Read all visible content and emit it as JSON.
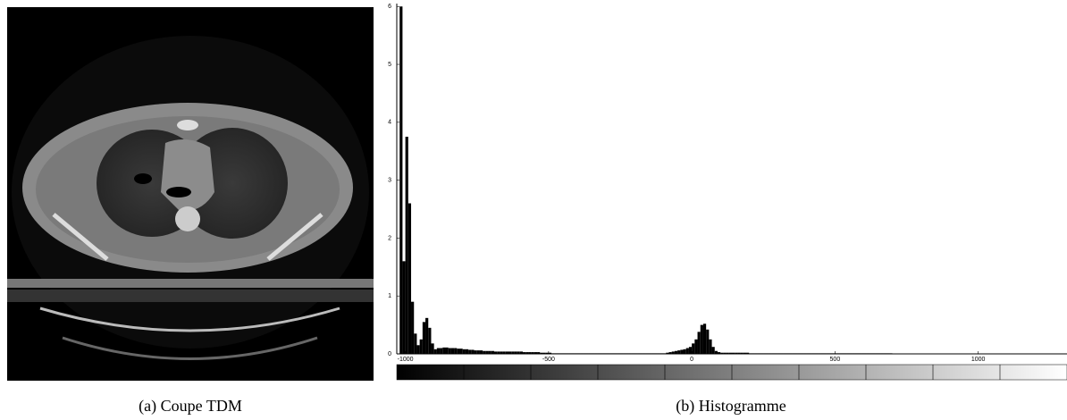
{
  "chart_data": {
    "type": "histogram",
    "bins": [
      -1020,
      -1010,
      -1000,
      -990,
      -980,
      -970,
      -960,
      -950,
      -940,
      -930,
      -920,
      -910,
      -900,
      -890,
      -880,
      -870,
      -860,
      -850,
      -840,
      -830,
      -820,
      -810,
      -800,
      -790,
      -780,
      -770,
      -760,
      -750,
      -740,
      -730,
      -720,
      -710,
      -700,
      -690,
      -680,
      -670,
      -660,
      -650,
      -640,
      -630,
      -620,
      -610,
      -600,
      -590,
      -580,
      -570,
      -560,
      -550,
      -540,
      -530,
      -520,
      -510,
      -500,
      -490,
      -480,
      -470,
      -460,
      -450,
      -440,
      -430,
      -420,
      -410,
      -400,
      -390,
      -380,
      -370,
      -360,
      -350,
      -340,
      -330,
      -320,
      -310,
      -300,
      -290,
      -280,
      -270,
      -260,
      -250,
      -240,
      -230,
      -220,
      -210,
      -200,
      -190,
      -180,
      -170,
      -160,
      -150,
      -140,
      -130,
      -120,
      -110,
      -100,
      -90,
      -80,
      -70,
      -60,
      -50,
      -40,
      -30,
      -20,
      -10,
      0,
      10,
      20,
      30,
      40,
      50,
      60,
      70,
      80,
      90,
      100,
      110,
      120,
      130,
      140,
      150,
      160,
      170,
      180,
      190,
      200,
      210,
      220,
      230,
      240,
      250,
      260,
      270,
      280,
      290,
      300,
      310,
      320,
      330,
      340,
      350,
      360,
      370,
      380,
      390,
      400,
      410,
      420,
      430,
      440,
      450,
      460,
      470,
      480,
      490,
      500,
      510,
      520,
      530,
      540,
      550,
      560,
      570,
      580,
      590,
      600,
      610,
      620,
      630,
      640,
      650,
      660,
      670,
      680,
      690,
      700,
      710,
      720,
      730,
      740,
      750,
      760,
      770,
      780,
      790,
      800,
      810,
      820,
      830,
      840,
      850,
      860,
      870,
      880,
      890,
      900,
      910,
      920,
      930,
      940,
      950,
      960,
      970,
      980,
      990,
      1000,
      1010,
      1020,
      1030,
      1040,
      1050,
      1060,
      1070,
      1080,
      1090,
      1100,
      1110,
      1120,
      1130,
      1140,
      1150,
      1160,
      1170,
      1180,
      1190,
      1200,
      1210,
      1220,
      1230,
      1240,
      1250,
      1260,
      1270,
      1280,
      1290,
      1300
    ],
    "values": [
      6.0,
      1.6,
      3.75,
      2.6,
      0.9,
      0.35,
      0.15,
      0.25,
      0.55,
      0.62,
      0.45,
      0.18,
      0.08,
      0.1,
      0.1,
      0.11,
      0.11,
      0.1,
      0.1,
      0.1,
      0.09,
      0.09,
      0.08,
      0.08,
      0.07,
      0.07,
      0.06,
      0.06,
      0.06,
      0.05,
      0.05,
      0.05,
      0.05,
      0.04,
      0.04,
      0.04,
      0.04,
      0.04,
      0.04,
      0.04,
      0.04,
      0.04,
      0.04,
      0.03,
      0.03,
      0.03,
      0.03,
      0.03,
      0.03,
      0.02,
      0.02,
      0.02,
      0.02,
      0.01,
      0.01,
      0.01,
      0.01,
      0.01,
      0.01,
      0.01,
      0.01,
      0.01,
      0.01,
      0.01,
      0.01,
      0.01,
      0.01,
      0.01,
      0.01,
      0.01,
      0.01,
      0.01,
      0.01,
      0.01,
      0.01,
      0.01,
      0.01,
      0.01,
      0.01,
      0.01,
      0.01,
      0.01,
      0.01,
      0.01,
      0.01,
      0.01,
      0.01,
      0.01,
      0.01,
      0.01,
      0.01,
      0.01,
      0.01,
      0.02,
      0.03,
      0.04,
      0.05,
      0.06,
      0.07,
      0.08,
      0.1,
      0.12,
      0.18,
      0.25,
      0.38,
      0.5,
      0.52,
      0.42,
      0.25,
      0.12,
      0.05,
      0.03,
      0.02,
      0.02,
      0.02,
      0.02,
      0.02,
      0.02,
      0.02,
      0.02,
      0.02,
      0.02,
      0.01,
      0.01,
      0.01,
      0.01,
      0.01,
      0.01,
      0.01,
      0.01,
      0.01,
      0.01,
      0.01,
      0.01,
      0.01,
      0.01,
      0.01,
      0.01,
      0.01,
      0.01,
      0.01,
      0.01,
      0.01,
      0.01,
      0.01,
      0.01,
      0.01,
      0.01,
      0.01,
      0.01,
      0.01,
      0.01,
      0.01,
      0.01,
      0.01,
      0.01,
      0.01,
      0.01,
      0.01,
      0.01,
      0.01,
      0.01,
      0.01,
      0.01,
      0.01,
      0.01,
      0.01,
      0.01,
      0.01,
      0.01,
      0.01,
      0.01,
      0,
      0,
      0,
      0,
      0,
      0,
      0,
      0,
      0,
      0,
      0,
      0,
      0,
      0,
      0,
      0,
      0,
      0,
      0,
      0,
      0,
      0,
      0,
      0,
      0,
      0,
      0,
      0,
      0,
      0,
      0,
      0,
      0,
      0,
      0,
      0,
      0,
      0,
      0,
      0,
      0,
      0,
      0,
      0,
      0,
      0,
      0,
      0,
      0,
      0,
      0,
      0,
      0,
      0,
      0,
      0,
      0,
      0,
      0,
      0
    ],
    "color": "#000000",
    "xlim": [
      -1030,
      1310
    ],
    "ylim": [
      0,
      6.05
    ],
    "xticks": [
      -1000,
      -500,
      0,
      500,
      1000
    ],
    "yticks": [
      0,
      1,
      2,
      3,
      4,
      5,
      6
    ]
  },
  "captions": [
    "(a) Coupe TDM",
    "(b) Histogramme"
  ]
}
